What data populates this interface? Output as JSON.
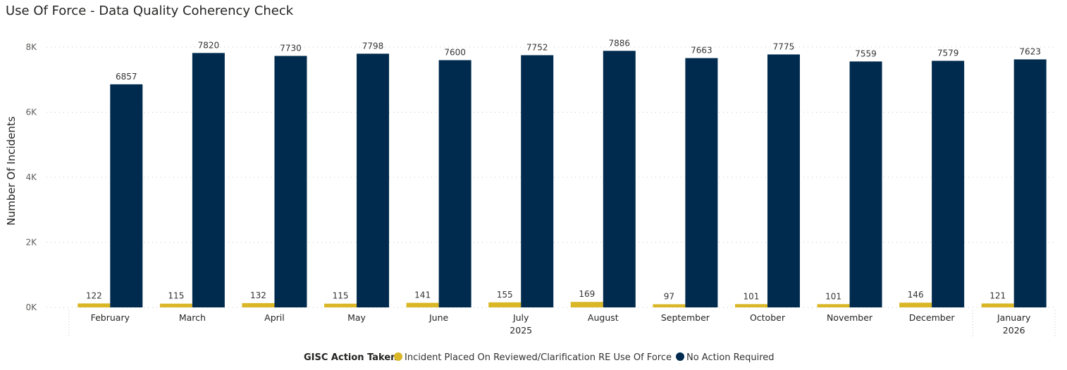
{
  "chart_data": {
    "type": "bar",
    "title": "Use Of Force - Data Quality Coherency Check",
    "ylabel": "Number Of Incidents",
    "xlabel": "",
    "categories": [
      "February",
      "March",
      "April",
      "May",
      "June",
      "July",
      "August",
      "September",
      "October",
      "November",
      "December",
      "January"
    ],
    "year_groups": [
      {
        "label": "2025",
        "first": 0,
        "last": 10
      },
      {
        "label": "2026",
        "first": 11,
        "last": 11
      }
    ],
    "ylim": [
      0,
      8000
    ],
    "yticks": [
      0,
      2000,
      4000,
      6000,
      8000
    ],
    "ytick_labels": [
      "0K",
      "2K",
      "4K",
      "6K",
      "8K"
    ],
    "grid": true,
    "legend": {
      "title": "GISC Action Taken",
      "position": "bottom-center"
    },
    "series": [
      {
        "name": "Incident Placed On Reviewed/Clarification RE Use Of Force",
        "color": "#d9b726",
        "values": [
          122,
          115,
          132,
          115,
          141,
          155,
          169,
          97,
          101,
          101,
          146,
          121
        ]
      },
      {
        "name": "No Action Required",
        "color": "#002b4e",
        "values": [
          6857,
          7820,
          7730,
          7798,
          7600,
          7752,
          7886,
          7663,
          7775,
          7559,
          7579,
          7623
        ]
      }
    ]
  }
}
